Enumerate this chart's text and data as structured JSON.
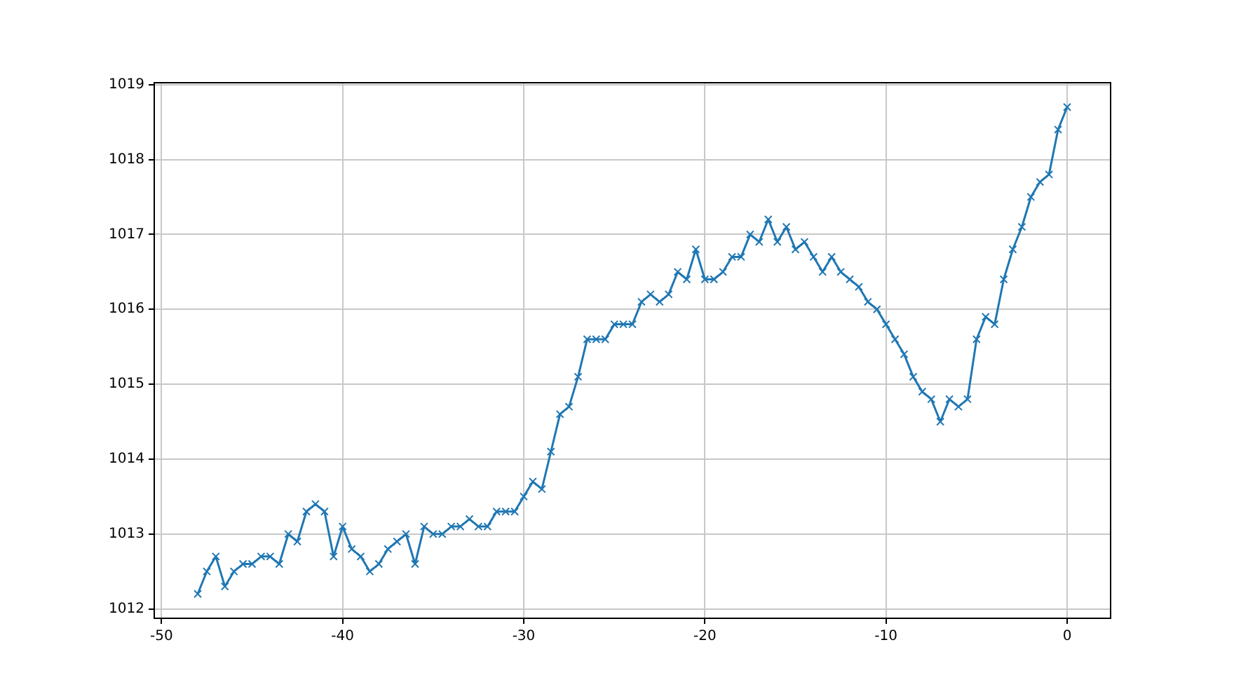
{
  "chart_data": {
    "type": "line",
    "x": [
      -48,
      -47.5,
      -47,
      -46.5,
      -46,
      -45.5,
      -45,
      -44.5,
      -44,
      -43.5,
      -43,
      -42.5,
      -42,
      -41.5,
      -41,
      -40.5,
      -40,
      -39.5,
      -39,
      -38.5,
      -38,
      -37.5,
      -37,
      -36.5,
      -36,
      -35.5,
      -35,
      -34.5,
      -34,
      -33.5,
      -33,
      -32.5,
      -32,
      -31.5,
      -31,
      -30.5,
      -30,
      -29.5,
      -29,
      -28.5,
      -28,
      -27.5,
      -27,
      -26.5,
      -26,
      -25.5,
      -25,
      -24.5,
      -24,
      -23.5,
      -23,
      -22.5,
      -22,
      -21.5,
      -21,
      -20.5,
      -20,
      -19.5,
      -19,
      -18.5,
      -18,
      -17.5,
      -17,
      -16.5,
      -16,
      -15.5,
      -15,
      -14.5,
      -14,
      -13.5,
      -13,
      -12.5,
      -12,
      -11.5,
      -11,
      -10.5,
      -10,
      -9.5,
      -9,
      -8.5,
      -8,
      -7.5,
      -7,
      -6.5,
      -6,
      -5.5,
      -5,
      -4.5,
      -4,
      -3.5,
      -3,
      -2.5,
      -2,
      -1.5,
      -1,
      -0.5,
      0
    ],
    "series": [
      {
        "color": "#1f77b4",
        "values": [
          1012.2,
          1012.5,
          1012.7,
          1012.3,
          1012.5,
          1012.6,
          1012.6,
          1012.7,
          1012.7,
          1012.6,
          1013.0,
          1012.9,
          1013.3,
          1013.4,
          1013.3,
          1012.7,
          1013.1,
          1012.8,
          1012.7,
          1012.5,
          1012.6,
          1012.8,
          1012.9,
          1013.0,
          1012.6,
          1013.1,
          1013.0,
          1013.0,
          1013.1,
          1013.1,
          1013.2,
          1013.1,
          1013.1,
          1013.3,
          1013.3,
          1013.3,
          1013.5,
          1013.7,
          1013.6,
          1014.1,
          1014.6,
          1014.7,
          1015.1,
          1015.6,
          1015.6,
          1015.6,
          1015.8,
          1015.8,
          1015.8,
          1016.1,
          1016.2,
          1016.1,
          1016.2,
          1016.5,
          1016.4,
          1016.8,
          1016.4,
          1016.4,
          1016.5,
          1016.7,
          1016.7,
          1017.0,
          1016.9,
          1017.2,
          1016.9,
          1017.1,
          1016.8,
          1016.9,
          1016.7,
          1016.5,
          1016.7,
          1016.5,
          1016.4,
          1016.3,
          1016.1,
          1016.0,
          1015.8,
          1015.6,
          1015.4,
          1015.1,
          1014.9,
          1014.8,
          1014.5,
          1014.8,
          1014.7,
          1014.8,
          1015.6,
          1015.9,
          1015.8,
          1016.4,
          1016.8,
          1017.1,
          1017.5,
          1017.7,
          1017.8,
          1018.4,
          1018.7
        ]
      }
    ],
    "xlim": [
      -50.4,
      2.4
    ],
    "ylim": [
      1011.875,
      1019.025
    ],
    "xticks": [
      -50,
      -40,
      -30,
      -20,
      -10,
      0
    ],
    "yticks": [
      1012,
      1013,
      1014,
      1015,
      1016,
      1017,
      1018,
      1019
    ],
    "grid": true,
    "marker": "cross",
    "line_style": "solid",
    "legend": false
  }
}
